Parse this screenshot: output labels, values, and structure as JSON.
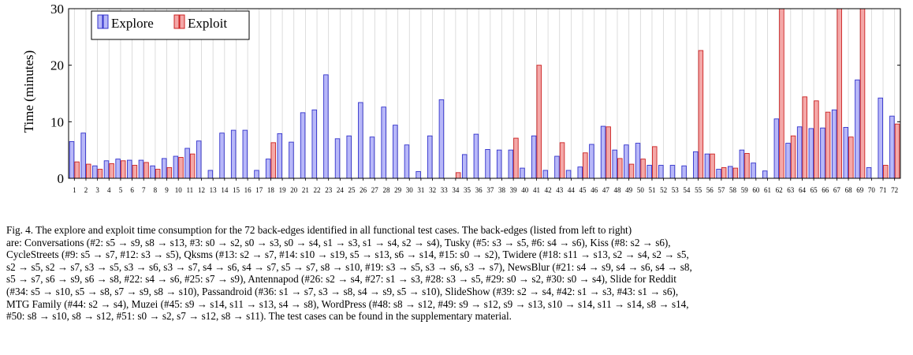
{
  "chart_data": {
    "type": "bar",
    "ylabel": "Time (minutes)",
    "ylim": [
      0,
      30
    ],
    "yticks": [
      0,
      10,
      20,
      30
    ],
    "categories": [
      "1",
      "2",
      "3",
      "4",
      "5",
      "6",
      "7",
      "8",
      "9",
      "10",
      "11",
      "12",
      "13",
      "14",
      "15",
      "16",
      "17",
      "18",
      "19",
      "20",
      "21",
      "22",
      "23",
      "24",
      "25",
      "26",
      "27",
      "28",
      "29",
      "30",
      "31",
      "32",
      "33",
      "34",
      "35",
      "36",
      "37",
      "38",
      "39",
      "40",
      "41",
      "42",
      "43",
      "44",
      "45",
      "46",
      "47",
      "48",
      "49",
      "50",
      "51",
      "52",
      "53",
      "54",
      "55",
      "56",
      "57",
      "58",
      "59",
      "60",
      "61",
      "62",
      "63",
      "64",
      "65",
      "66",
      "67",
      "68",
      "69",
      "70",
      "71",
      "72"
    ],
    "series": [
      {
        "name": "Explore",
        "color": "#b8b8f8",
        "edge": "#3333cc",
        "values": [
          6.5,
          8.0,
          2.2,
          3.1,
          3.4,
          3.2,
          3.2,
          2.2,
          3.5,
          3.9,
          5.3,
          6.6,
          1.4,
          8.0,
          8.5,
          8.5,
          1.4,
          3.4,
          7.9,
          6.4,
          11.6,
          12.1,
          18.3,
          7.0,
          7.5,
          13.4,
          7.3,
          12.6,
          9.4,
          5.9,
          1.2,
          7.5,
          13.9,
          0,
          4.2,
          7.8,
          5.1,
          5.0,
          5.0,
          1.8,
          7.5,
          1.4,
          3.9,
          1.4,
          2.0,
          6.0,
          9.2,
          5.0,
          5.9,
          6.2,
          2.3,
          2.3,
          2.3,
          2.2,
          4.7,
          4.3,
          1.6,
          2.1,
          5.0,
          2.7,
          1.3,
          10.5,
          6.2,
          9.1,
          8.8,
          8.9,
          12.1,
          9.0,
          17.4,
          1.9,
          14.2,
          11.0
        ]
      },
      {
        "name": "Exploit",
        "color": "#f4a8a8",
        "edge": "#cc2222",
        "values": [
          2.9,
          2.5,
          1.6,
          2.6,
          3.1,
          2.3,
          2.8,
          1.6,
          1.9,
          3.7,
          4.3,
          0,
          0,
          0,
          0,
          0,
          0,
          6.3,
          0,
          0,
          0,
          0,
          0,
          0,
          0,
          0,
          0,
          0,
          0,
          0,
          0,
          0,
          0,
          1.0,
          0,
          0,
          0,
          0,
          7.1,
          0,
          20.0,
          0,
          6.3,
          0,
          4.5,
          0,
          9.1,
          3.5,
          2.5,
          3.4,
          5.6,
          0,
          0,
          0,
          22.6,
          4.3,
          1.9,
          1.8,
          4.4,
          0,
          0,
          30,
          7.5,
          14.4,
          13.7,
          11.7,
          30,
          7.3,
          30,
          0,
          2.3,
          9.6
        ]
      }
    ],
    "legend_placement": "top-left",
    "grid": "vertical"
  },
  "caption": {
    "lines": [
      "Fig. 4.   The explore and exploit time consumption for the 72 back-edges identified in all functional test cases. The back-edges (listed from left to right)",
      "are: Conversations (#2: s5 → s9, s8 → s13, #3: s0 → s2, s0 → s3, s0 → s4, s1 → s3, s1 → s4, s2 → s4), Tusky (#5: s3 → s5, #6: s4 → s6), Kiss (#8: s2 → s6),",
      "CycleStreets (#9: s5 → s7, #12: s3 → s5), Qksms (#13: s2 → s7, #14: s10 → s19, s5 → s13, s6 → s14, #15: s0 → s2), Twidere (#18: s11 → s13, s2 → s4, s2 → s5,",
      "s2 → s5, s2 → s7, s3 → s5, s3 → s6, s3 → s7, s4 → s6, s4 → s7, s5 → s7, s8 → s10, #19: s3 → s5, s3 → s6, s3 → s7), NewsBlur (#21: s4 → s9, s4 → s6, s4 → s8,",
      "s5 → s7, s6 → s9, s6 → s8, #22: s4 → s6, #25: s7 → s9), Antennapod (#26: s2 → s4, #27: s1 → s3, #28: s3 → s5, #29: s0 → s2, #30: s0 → s4), Slide for Reddit",
      "(#34: s5 → s10, s5 → s8, s7 → s9, s8 → s10), Passandroid (#36: s1 → s7, s3 → s8, s4 → s9, s5 → s10), SlideShow (#39: s2 → s4, #42: s1 → s3, #43: s1 → s6),",
      "MTG Family (#44: s2 → s4), Muzei (#45: s9 → s14, s11 → s13, s4 → s8), WordPress (#48: s8 → s12, #49: s9 → s12, s9 → s13, s10 → s14, s11 → s14, s8 → s14,",
      "#50: s8 → s10, s8 → s12, #51: s0 → s2, s7 → s12, s8 → s11). The test cases can be found in the supplementary material."
    ]
  }
}
